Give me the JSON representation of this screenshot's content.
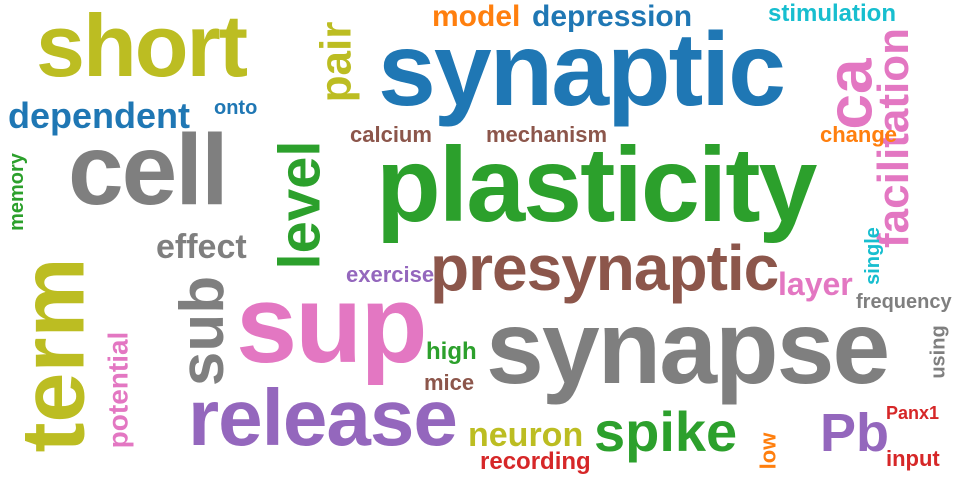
{
  "colors": {
    "olive": "#bcbd22",
    "blue": "#1f77b4",
    "green": "#2ca02c",
    "gray": "#7f7f7f",
    "pink": "#e377c2",
    "purple": "#9467bd",
    "brown": "#8c564b",
    "orange": "#ff7f0e",
    "cyan": "#17becf",
    "red": "#d62728"
  },
  "words": [
    {
      "key": "synaptic",
      "text": "synaptic"
    },
    {
      "key": "plasticity",
      "text": "plasticity"
    },
    {
      "key": "synapse",
      "text": "synapse"
    },
    {
      "key": "sup",
      "text": "sup"
    },
    {
      "key": "short",
      "text": "short"
    },
    {
      "key": "term",
      "text": "term"
    },
    {
      "key": "cell",
      "text": "cell"
    },
    {
      "key": "release",
      "text": "release"
    },
    {
      "key": "presynaptic",
      "text": "presynaptic"
    },
    {
      "key": "level",
      "text": "level"
    },
    {
      "key": "sub",
      "text": "sub"
    },
    {
      "key": "facilitation",
      "text": "facilitation"
    },
    {
      "key": "ca",
      "text": "ca"
    },
    {
      "key": "pair",
      "text": "pair"
    },
    {
      "key": "spike",
      "text": "spike"
    },
    {
      "key": "pb",
      "text": "Pb"
    },
    {
      "key": "dependent",
      "text": "dependent"
    },
    {
      "key": "depression",
      "text": "depression"
    },
    {
      "key": "model",
      "text": "model"
    },
    {
      "key": "stimulation",
      "text": "stimulation"
    },
    {
      "key": "effect",
      "text": "effect"
    },
    {
      "key": "potential",
      "text": "potential"
    },
    {
      "key": "neuron",
      "text": "neuron"
    },
    {
      "key": "layer",
      "text": "layer"
    },
    {
      "key": "calcium",
      "text": "calcium"
    },
    {
      "key": "mechanism",
      "text": "mechanism"
    },
    {
      "key": "change",
      "text": "change"
    },
    {
      "key": "onto",
      "text": "onto"
    },
    {
      "key": "memory",
      "text": "memory"
    },
    {
      "key": "exercise",
      "text": "exercise"
    },
    {
      "key": "high",
      "text": "high"
    },
    {
      "key": "mice",
      "text": "mice"
    },
    {
      "key": "recording",
      "text": "recording"
    },
    {
      "key": "frequency",
      "text": "frequency"
    },
    {
      "key": "single",
      "text": "single"
    },
    {
      "key": "using",
      "text": "using"
    },
    {
      "key": "panx1",
      "text": "Panx1"
    },
    {
      "key": "input",
      "text": "input"
    },
    {
      "key": "low",
      "text": "low"
    }
  ]
}
